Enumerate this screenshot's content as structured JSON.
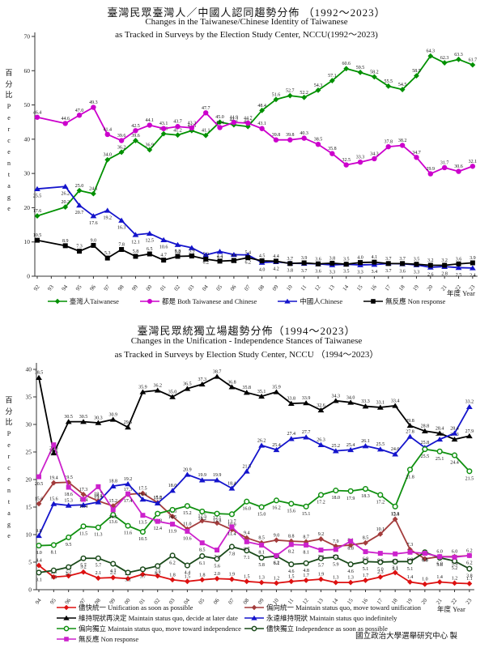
{
  "page": {
    "credit": "國立政治大學選舉研究中心 製"
  },
  "chart1": {
    "title_zh": "臺灣民眾臺灣人／中國人認同趨勢分佈 （1992～2023）",
    "title_en_1": "Changes in the Taiwanese/Chinese Identity of Taiwanese",
    "title_en_2": "as Tracked in Surveys by the Election Study Center, NCCU(1992～2023)",
    "ylabel_zh": "百分比",
    "ylabel_en": "Percentage",
    "xlabel": "年度 Year",
    "legend": [
      {
        "label": "臺灣人Taiwanese",
        "color": "#009000",
        "marker": "diamond"
      },
      {
        "label": "都是 Both Taiwanese and Chinese",
        "color": "#CC00CC",
        "marker": "circle"
      },
      {
        "label": "中國人Chinese",
        "color": "#1414CC",
        "marker": "triangle"
      },
      {
        "label": "無反應 Non response",
        "color": "#000000",
        "marker": "square"
      }
    ]
  },
  "chart2": {
    "title_zh": "臺灣民眾統獨立場趨勢分佈（1994～2023）",
    "title_en_1": "Changes in the Unification - Independence Stances of Taiwanese",
    "title_en_2": "as Tracked in Surveys by Election Study Center, NCCU （1994～2023）",
    "ylabel_zh": "百分比",
    "ylabel_en": "Percentage",
    "xlabel": "年度 Year",
    "legend": [
      {
        "label": "儘快統一 Unification as soon as possible",
        "color": "#DD1111",
        "marker": "diamond"
      },
      {
        "label": "偏向統一 Maintain status quo, move toward unification",
        "color": "#A33C3C",
        "marker": "diamond"
      },
      {
        "label": "維持現狀再決定 Maintain status quo, decide at later date",
        "color": "#000000",
        "marker": "triangle"
      },
      {
        "label": "永遠維持現狀 Maintain status quo indefinitely",
        "color": "#1414CC",
        "marker": "triangle"
      },
      {
        "label": "偏向獨立 Maintain status quo, move toward independence",
        "color": "#109010",
        "marker": "circle-open"
      },
      {
        "label": "儘快獨立 Independence as soon as possible",
        "color": "#1A4A1A",
        "marker": "circle-open"
      },
      {
        "label": "無反應 Non response",
        "color": "#CC22CC",
        "marker": "square"
      }
    ]
  },
  "chart_data": [
    {
      "type": "line",
      "title": "Taiwanese/Chinese Identity 1992-2023",
      "xlabel": "年度 Year",
      "ylabel": "百分比 Percentage",
      "ylim": [
        0,
        70
      ],
      "yticks": [
        0,
        10,
        20,
        30,
        40,
        50,
        60,
        70
      ],
      "axis_year_start": 1992,
      "axis_year_end": 2023,
      "years": [
        1992,
        1994,
        1995,
        1996,
        1997,
        1998,
        1999,
        2000,
        2001,
        2002,
        2003,
        2004,
        2005,
        2006,
        2007,
        2008,
        2009,
        2010,
        2011,
        2012,
        2013,
        2014,
        2015,
        2016,
        2017,
        2018,
        2019,
        2020,
        2021,
        2022,
        2023
      ],
      "series": [
        {
          "name": "臺灣人Taiwanese",
          "color": "#009000",
          "marker": "diamond",
          "values": [
            17.6,
            20.2,
            25.0,
            24.1,
            34.0,
            36.2,
            39.6,
            36.9,
            41.6,
            41.2,
            42.5,
            41.1,
            45.0,
            44.2,
            43.7,
            48.4,
            51.6,
            52.7,
            52.2,
            54.3,
            57.1,
            60.6,
            59.5,
            58.2,
            55.5,
            54.5,
            58.5,
            64.3,
            62.3,
            63.3,
            61.7
          ]
        },
        {
          "name": "都是 Both Taiwanese and Chinese",
          "color": "#CC00CC",
          "marker": "circle",
          "values": [
            46.4,
            44.6,
            47.0,
            49.3,
            41.4,
            39.6,
            42.5,
            44.1,
            43.1,
            43.7,
            43.3,
            47.7,
            43.4,
            44.9,
            44.7,
            43.1,
            39.8,
            39.8,
            40.3,
            38.5,
            35.8,
            32.5,
            33.3,
            34.3,
            37.8,
            38.2,
            34.7,
            29.9,
            31.7,
            30.6,
            32.1
          ]
        },
        {
          "name": "中國人Chinese",
          "color": "#1414CC",
          "marker": "triangle",
          "values": [
            25.5,
            26.2,
            20.7,
            17.6,
            19.2,
            16.3,
            12.1,
            12.5,
            10.6,
            9.2,
            8.3,
            6.2,
            7.2,
            6.3,
            6.2,
            4.0,
            4.2,
            3.8,
            3.7,
            3.6,
            3.3,
            3.5,
            3.3,
            3.4,
            3.7,
            3.6,
            3.3,
            2.6,
            2.8,
            2.5,
            2.4
          ]
        },
        {
          "name": "無反應 Non response",
          "color": "#000000",
          "marker": "square",
          "values": [
            10.5,
            8.9,
            7.3,
            9.0,
            5.3,
            7.8,
            5.8,
            6.5,
            4.7,
            5.8,
            5.9,
            5.0,
            4.4,
            4.6,
            5.4,
            4.5,
            4.4,
            3.7,
            3.9,
            3.6,
            3.8,
            3.5,
            4.0,
            4.1,
            3.7,
            3.7,
            3.5,
            3.2,
            3.2,
            3.6,
            3.9
          ]
        }
      ]
    },
    {
      "type": "line",
      "title": "Unification-Independence Stances 1994-2023",
      "xlabel": "年度 Year",
      "ylabel": "百分比 Percentage",
      "ylim": [
        0,
        40
      ],
      "yticks": [
        0,
        5,
        10,
        15,
        20,
        25,
        30,
        35,
        40
      ],
      "axis_year_start": 1994,
      "axis_year_end": 2023,
      "years": [
        1994,
        1995,
        1996,
        1997,
        1998,
        1999,
        2000,
        2001,
        2002,
        2003,
        2004,
        2005,
        2006,
        2007,
        2008,
        2009,
        2010,
        2011,
        2012,
        2013,
        2014,
        2015,
        2016,
        2017,
        2018,
        2019,
        2020,
        2021,
        2022,
        2023
      ],
      "series": [
        {
          "name": "儘快統一 Unification as soon as possible",
          "color": "#DD1111",
          "marker": "diamond",
          "values": [
            4.4,
            2.3,
            2.5,
            3.2,
            2.1,
            2.2,
            2.0,
            2.8,
            2.5,
            1.8,
            1.5,
            1.8,
            2.0,
            1.9,
            1.5,
            1.3,
            1.2,
            1.5,
            1.7,
            1.9,
            1.3,
            1.3,
            1.7,
            2.3,
            3.1,
            1.4,
            1.0,
            1.4,
            1.2,
            1.1
          ]
        },
        {
          "name": "偏向統一 Maintain status quo, move toward unification",
          "color": "#A33C3C",
          "marker": "diamond",
          "values": [
            15.6,
            19.4,
            19.5,
            17.3,
            16.1,
            15.2,
            17.3,
            17.5,
            15.8,
            13.3,
            11.0,
            12.5,
            12.1,
            10.9,
            9.4,
            8.5,
            9.0,
            8.8,
            8.7,
            9.2,
            7.9,
            8.1,
            8.5,
            10.1,
            12.8,
            7.3,
            5.6,
            6.0,
            6.0,
            6.2
          ]
        },
        {
          "name": "維持現狀再決定 Maintain status quo, decide at later date",
          "color": "#000000",
          "marker": "triangle",
          "values": [
            38.5,
            24.8,
            30.5,
            30.5,
            30.3,
            30.9,
            29.5,
            35.9,
            36.2,
            35.0,
            36.5,
            37.3,
            38.7,
            36.8,
            35.8,
            35.1,
            35.9,
            33.8,
            33.9,
            32.6,
            34.3,
            34.0,
            33.3,
            33.1,
            33.4,
            29.8,
            28.8,
            28.4,
            27.3,
            27.9
          ]
        },
        {
          "name": "永遠維持現狀 Maintain status quo indefinitely",
          "color": "#1414CC",
          "marker": "triangle",
          "values": [
            9.8,
            15.6,
            15.3,
            15.4,
            15.9,
            18.8,
            19.2,
            16.4,
            15.7,
            18.0,
            20.9,
            19.9,
            19.9,
            18.4,
            21.5,
            26.2,
            25.4,
            27.4,
            27.7,
            26.3,
            25.2,
            25.4,
            26.1,
            25.5,
            24.6,
            27.8,
            25.8,
            27.3,
            28.4,
            33.2
          ]
        },
        {
          "name": "偏向獨立 Maintain status quo, move toward independence",
          "color": "#109010",
          "marker": "circle-open",
          "values": [
            8.0,
            8.1,
            9.5,
            11.5,
            11.3,
            13.6,
            11.6,
            10.5,
            13.8,
            14.5,
            15.2,
            14.2,
            13.8,
            13.7,
            16.0,
            15.0,
            16.2,
            15.6,
            15.1,
            17.2,
            18.0,
            17.9,
            18.3,
            17.2,
            15.1,
            21.8,
            25.5,
            25.1,
            24.4,
            21.5
          ]
        },
        {
          "name": "儘快獨立 Independence as soon as possible",
          "color": "#1A4A1A",
          "marker": "circle-open",
          "values": [
            3.1,
            3.5,
            4.1,
            5.7,
            5.7,
            4.7,
            3.1,
            3.7,
            4.3,
            6.2,
            4.4,
            6.1,
            5.6,
            7.8,
            7.1,
            5.8,
            6.1,
            4.6,
            4.8,
            5.7,
            5.9,
            4.6,
            5.1,
            5.0,
            5.1,
            5.1,
            6.8,
            5.8,
            5.2,
            3.8
          ]
        },
        {
          "name": "無反應 Non response",
          "color": "#CC22CC",
          "marker": "square",
          "values": [
            20.5,
            26.3,
            18.6,
            16.4,
            18.7,
            14.5,
            17.4,
            13.5,
            12.4,
            11.9,
            10.6,
            8.5,
            7.2,
            11.4,
            8.7,
            8.1,
            6.2,
            8.2,
            8.1,
            7.2,
            7.3,
            8.8,
            6.9,
            6.6,
            6.5,
            6.8,
            6.6,
            6.0,
            5.9,
            6.2
          ]
        }
      ]
    }
  ]
}
